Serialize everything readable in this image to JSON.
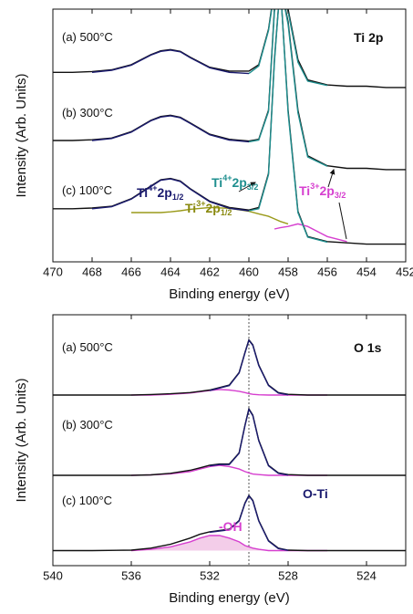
{
  "chart_data": [
    {
      "type": "line",
      "xlabel": "Binding energy (eV)",
      "ylabel": "Intensity (Arb. Units)",
      "xlim": [
        470,
        452
      ],
      "xticks": [
        470,
        468,
        466,
        464,
        462,
        460,
        458,
        456,
        454,
        452
      ],
      "ylim": [
        0,
        100
      ],
      "x": [
        470,
        469,
        468,
        467,
        466,
        465,
        464.5,
        464,
        463.5,
        463,
        462,
        461,
        460,
        459.5,
        459,
        458.7,
        458.4,
        458,
        457.5,
        457,
        456,
        455,
        454,
        453,
        452
      ],
      "series": [
        {
          "color": "#111111",
          "values": [
            75,
            75,
            75.3,
            76,
            78,
            82,
            83.5,
            84,
            83.3,
            81,
            77,
            75.5,
            75.5,
            78,
            92,
            108,
            110,
            100,
            80,
            72,
            70,
            69.5,
            69.5,
            69,
            69
          ]
        },
        {
          "color": "#1a1a6e",
          "values": [
            null,
            null,
            75,
            75.8,
            77.8,
            81.8,
            83.3,
            83.8,
            83.1,
            80.8,
            76.8,
            75,
            74.5,
            null,
            null,
            null,
            null,
            null,
            null,
            null,
            null,
            null,
            null,
            null,
            null
          ]
        },
        {
          "color": "#1f8f8f",
          "values": [
            null,
            null,
            null,
            null,
            null,
            null,
            null,
            null,
            null,
            null,
            null,
            null,
            74.5,
            77.5,
            91.5,
            107,
            110,
            99,
            79,
            71.5,
            69.8,
            null,
            null,
            null,
            null
          ]
        },
        {
          "color": "#111111",
          "values": [
            48,
            48,
            48.3,
            49,
            51.5,
            56,
            57.5,
            58,
            57.2,
            55,
            50.5,
            48.5,
            47.8,
            48.5,
            60,
            100,
            110,
            95,
            60,
            42,
            38,
            37,
            37,
            36.5,
            36.5
          ]
        },
        {
          "color": "#1a1a6e",
          "values": [
            null,
            null,
            48,
            48.8,
            51.3,
            55.8,
            57.3,
            57.8,
            57,
            54.8,
            50.3,
            48.2,
            47.5,
            null,
            null,
            null,
            null,
            null,
            null,
            null,
            null,
            null,
            null,
            null,
            null
          ]
        },
        {
          "color": "#1f8f8f",
          "values": [
            null,
            null,
            null,
            null,
            null,
            null,
            null,
            null,
            null,
            null,
            null,
            null,
            47.5,
            48.2,
            59.5,
            99,
            110,
            94,
            59,
            41.5,
            37.8,
            null,
            null,
            null,
            null
          ]
        },
        {
          "color": "#111111",
          "values": [
            21,
            21,
            21.3,
            22,
            25,
            30,
            32.5,
            33,
            32,
            29,
            24,
            21.5,
            20.5,
            21.5,
            35,
            80,
            110,
            60,
            20,
            10,
            8,
            7.5,
            7,
            7,
            7
          ]
        },
        {
          "color": "#9a9a1a",
          "values": [
            null,
            null,
            null,
            null,
            19.5,
            19.5,
            19.5,
            19.8,
            20.2,
            20.8,
            21.5,
            21.2,
            20,
            19,
            18,
            17,
            16,
            15,
            null,
            null,
            null,
            null,
            null,
            null,
            null
          ]
        },
        {
          "color": "#d63fcf",
          "values": [
            null,
            null,
            null,
            null,
            null,
            null,
            null,
            null,
            null,
            null,
            null,
            null,
            null,
            null,
            null,
            13,
            13.5,
            14,
            15,
            14,
            10,
            8,
            null,
            null,
            null
          ]
        },
        {
          "color": "#1a1a6e",
          "values": [
            null,
            null,
            21,
            21.8,
            24.8,
            29.8,
            32.3,
            32.8,
            31.8,
            28.8,
            23.8,
            21.2,
            20.2,
            null,
            null,
            null,
            null,
            null,
            null,
            null,
            null,
            null,
            null,
            null,
            null
          ]
        },
        {
          "color": "#1f8f8f",
          "values": [
            null,
            null,
            null,
            null,
            null,
            null,
            null,
            null,
            null,
            null,
            null,
            null,
            20.2,
            21,
            34.5,
            79,
            110,
            59,
            19.5,
            9.8,
            7.8,
            null,
            null,
            null,
            null
          ]
        }
      ],
      "annotations": [
        {
          "color": "#111111",
          "segments": [
            {
              "t": "(a) 500°C"
            }
          ]
        },
        {
          "color": "#111111",
          "bold": true,
          "segments": [
            {
              "t": "Ti 2p"
            }
          ]
        },
        {
          "color": "#111111",
          "segments": [
            {
              "t": "(b) 300°C"
            }
          ]
        },
        {
          "color": "#111111",
          "segments": [
            {
              "t": "(c) 100°C"
            }
          ]
        },
        {
          "color": "#1a1a6e",
          "bold": true,
          "segments": [
            {
              "t": "Ti"
            },
            {
              "sup": "4+"
            },
            {
              "t": "2p"
            },
            {
              "sub": "1/2"
            }
          ]
        },
        {
          "color": "#8a8a10",
          "bold": true,
          "segments": [
            {
              "t": "Ti"
            },
            {
              "sup": "3+"
            },
            {
              "t": "2p"
            },
            {
              "sub": "1/2"
            }
          ]
        },
        {
          "color": "#1f8f8f",
          "bold": true,
          "segments": [
            {
              "t": "Ti"
            },
            {
              "sup": "4+"
            },
            {
              "t": "2p"
            },
            {
              "sub": "3/2"
            }
          ]
        },
        {
          "color": "#d63fcf",
          "bold": true,
          "segments": [
            {
              "t": "Ti"
            },
            {
              "sup": "3+"
            },
            {
              "t": "2p"
            },
            {
              "sub": "3/2"
            }
          ]
        }
      ]
    },
    {
      "type": "line",
      "xlabel": "Binding energy (eV)",
      "ylabel": "Intensity (Arb. Units)",
      "xlim": [
        540,
        522
      ],
      "xticks": [
        540,
        536,
        532,
        528,
        524
      ],
      "ylim": [
        0,
        100
      ],
      "ref_line_x": 530,
      "x": [
        540,
        538,
        536,
        535,
        534,
        533,
        532.5,
        532,
        531.5,
        531,
        530.5,
        530.2,
        530,
        529.8,
        529.5,
        529,
        528.5,
        528,
        527,
        526,
        524,
        522
      ],
      "series": [
        {
          "color": "#d63fcf",
          "values": [
            null,
            null,
            68,
            68,
            68.3,
            68.8,
            69.3,
            69.8,
            70.2,
            70,
            69.5,
            69,
            68.6,
            68.3,
            68.1,
            68,
            68,
            68,
            68,
            68,
            null,
            null
          ]
        },
        {
          "color": "#111111",
          "values": [
            68,
            68,
            68,
            68.2,
            68.5,
            69,
            69.5,
            70,
            71,
            72,
            77,
            85,
            90,
            88,
            80,
            72,
            69,
            68.3,
            68,
            68,
            68,
            68
          ]
        },
        {
          "color": "#1a1a6e",
          "values": [
            null,
            null,
            null,
            null,
            null,
            null,
            null,
            69.8,
            70.8,
            71.8,
            76.8,
            84.8,
            89.8,
            87.8,
            79.8,
            71.8,
            68.8,
            68.1,
            null,
            null,
            null,
            null
          ]
        },
        {
          "color": "#d63fcf",
          "values": [
            null,
            null,
            36,
            36.2,
            36.6,
            37.5,
            38.5,
            39.5,
            40,
            39.5,
            38.5,
            37.5,
            37,
            36.5,
            36.3,
            36,
            36,
            36,
            36,
            36,
            null,
            null
          ]
        },
        {
          "color": "#111111",
          "values": [
            36,
            36,
            36,
            36.2,
            36.8,
            38,
            39,
            40,
            40.5,
            40.5,
            45,
            56,
            62.5,
            60,
            50,
            40,
            37,
            36.3,
            36,
            36,
            36,
            36
          ]
        },
        {
          "color": "#1a1a6e",
          "values": [
            null,
            null,
            null,
            null,
            null,
            null,
            null,
            39.8,
            40.3,
            40.3,
            44.8,
            55.8,
            62.3,
            59.8,
            49.8,
            39.8,
            36.8,
            36.1,
            null,
            null,
            null,
            null
          ]
        },
        {
          "color": "#d63fcf",
          "fill": "#f3cde9",
          "values": [
            null,
            null,
            6,
            6.5,
            7.5,
            9.5,
            11,
            12,
            12,
            11,
            9.5,
            8,
            7.5,
            7,
            6.5,
            6,
            6,
            6,
            6,
            6,
            null,
            null
          ]
        },
        {
          "color": "#111111",
          "values": [
            6,
            6,
            6.2,
            7,
            8.5,
            11,
            12.5,
            13.5,
            14,
            14.5,
            18,
            25,
            28,
            26,
            18,
            10,
            7,
            6.2,
            6,
            6,
            6,
            6
          ]
        },
        {
          "color": "#1a1a6e",
          "values": [
            null,
            null,
            null,
            null,
            null,
            null,
            null,
            13.3,
            13.8,
            14.3,
            17.8,
            24.8,
            27.8,
            25.8,
            17.8,
            9.8,
            6.8,
            6.1,
            null,
            null,
            null,
            null
          ]
        }
      ],
      "annotations": [
        {
          "color": "#111111",
          "segments": [
            {
              "t": "(a) 500°C"
            }
          ]
        },
        {
          "color": "#111111",
          "bold": true,
          "segments": [
            {
              "t": "O 1s"
            }
          ]
        },
        {
          "color": "#111111",
          "segments": [
            {
              "t": "(b) 300°C"
            }
          ]
        },
        {
          "color": "#111111",
          "segments": [
            {
              "t": "(c) 100°C"
            }
          ]
        },
        {
          "color": "#d63fcf",
          "bold": true,
          "segments": [
            {
              "t": "-OH"
            }
          ]
        },
        {
          "color": "#1a1a6e",
          "bold": true,
          "segments": [
            {
              "t": "O-Ti"
            }
          ]
        }
      ]
    }
  ]
}
